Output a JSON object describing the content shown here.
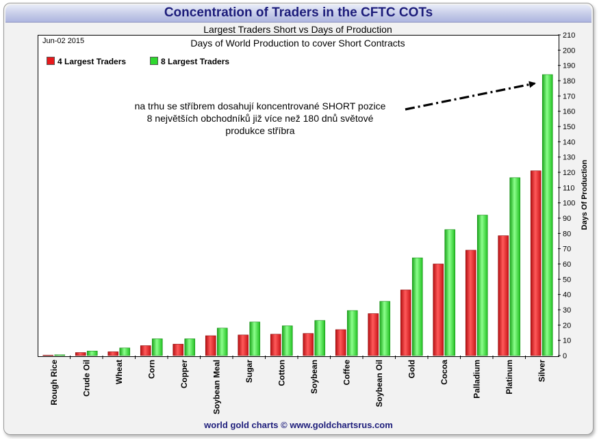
{
  "chart_data": {
    "type": "bar",
    "title": "Concentration of Traders in the CFTC COTs",
    "subtitle": "Largest Traders Short vs Days of Production",
    "plot_title": "Days of World Production to cover Short Contracts",
    "date": "Jun-02 2015",
    "ylabel": "Days Of Production",
    "xlabel": "",
    "ylim": [
      0,
      210
    ],
    "yticks": [
      0,
      10,
      20,
      30,
      40,
      50,
      60,
      70,
      80,
      90,
      100,
      110,
      120,
      130,
      140,
      150,
      160,
      170,
      180,
      190,
      200,
      210
    ],
    "grid": false,
    "legend_position": "top-left",
    "categories": [
      "Rough Rice",
      "Crude Oil",
      "Wheat",
      "Corn",
      "Copper",
      "Soybean Meal",
      "Sugar",
      "Cotton",
      "Soybean",
      "Coffee",
      "Soybean Oil",
      "Gold",
      "Cocoa",
      "Palladium",
      "Platinum",
      "Silver"
    ],
    "series": [
      {
        "name": "4 Largest Traders",
        "color": "#e8191c",
        "values": [
          0.3,
          2,
          2.5,
          6.5,
          7.5,
          13,
          13.5,
          14,
          14.5,
          17,
          27.5,
          43,
          60,
          69,
          78.5,
          121
        ]
      },
      {
        "name": "8 Largest Traders",
        "color": "#2fd82f",
        "values": [
          0.5,
          3,
          5,
          11,
          11,
          18,
          22,
          19.5,
          23,
          29.5,
          35.5,
          64,
          82.5,
          92,
          116.5,
          184
        ]
      }
    ],
    "annotation": [
      "na trhu se stříbrem dosahují koncentrované SHORT pozice",
      "8 největších obchodníků již více než 180 dnů světové",
      "produkce stříbra"
    ]
  },
  "footer": "world gold charts © www.goldchartsrus.com"
}
